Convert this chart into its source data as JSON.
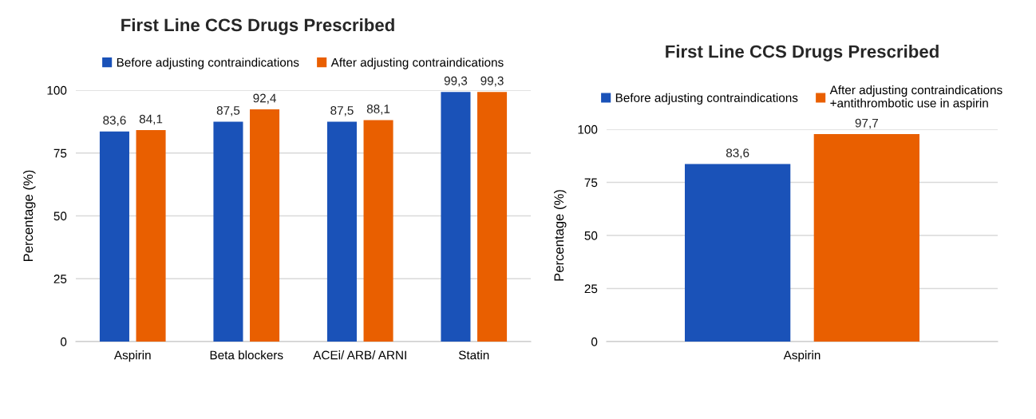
{
  "chart_data": [
    {
      "type": "bar",
      "title": "First Line CCS Drugs Prescribed",
      "ylabel": "Percentage (%)",
      "categories": [
        "Aspirin",
        "Beta blockers",
        "ACEi/ ARB/ ARNI",
        "Statin"
      ],
      "series": [
        {
          "name": "Before adjusting contraindications",
          "color": "#1a52b8",
          "values": [
            83.6,
            87.5,
            87.5,
            99.3
          ],
          "value_labels": [
            "83,6",
            "87,5",
            "87,5",
            "99,3"
          ]
        },
        {
          "name": "After adjusting contraindications",
          "color": "#e95f00",
          "values": [
            84.1,
            92.4,
            88.1,
            99.3
          ],
          "value_labels": [
            "84,1",
            "92,4",
            "88,1",
            "99,3"
          ]
        }
      ],
      "ylim": [
        0,
        100
      ],
      "yticks": [
        0,
        25,
        50,
        75,
        100
      ],
      "grid": "y",
      "legend": "top"
    },
    {
      "type": "bar",
      "title": "First Line CCS Drugs Prescribed",
      "ylabel": "Percentage (%)",
      "categories": [
        "Aspirin"
      ],
      "series": [
        {
          "name": "Before adjusting contraindications",
          "color": "#1a52b8",
          "values": [
            83.6
          ],
          "value_labels": [
            "83,6"
          ]
        },
        {
          "name": "After adjusting contraindications\n+antithrombotic use in aspirin",
          "color": "#e95f00",
          "values": [
            97.7
          ],
          "value_labels": [
            "97,7"
          ]
        }
      ],
      "ylim": [
        0,
        100
      ],
      "yticks": [
        0,
        25,
        50,
        75,
        100
      ],
      "grid": "y",
      "legend": "top"
    }
  ]
}
